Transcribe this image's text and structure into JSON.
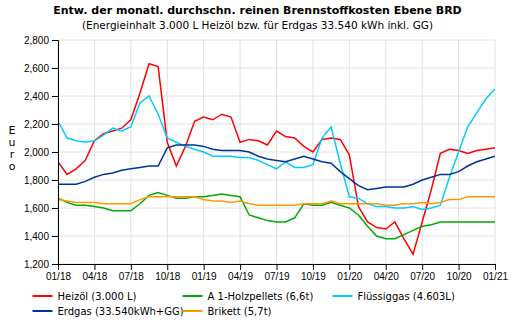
{
  "chart_data": {
    "type": "line",
    "title": "Entw. der monatl. durchschn. reinen Brennstoffkosten Ebene BRD",
    "subtitle": "(Energieinhalt 3.000 L Heizöl bzw. für Erdgas 33.540 kWh inkl. GG)",
    "y_label": "Euro",
    "categories": [
      "01/18",
      null,
      null,
      null,
      "04/18",
      null,
      null,
      null,
      "07/18",
      null,
      null,
      null,
      "10/18",
      null,
      null,
      null,
      "01/19",
      null,
      null,
      null,
      "04/19",
      null,
      null,
      null,
      "07/19",
      null,
      null,
      null,
      "10/19",
      null,
      null,
      null,
      "01/20",
      null,
      null,
      null,
      "04/20",
      null,
      null,
      null,
      "07/20",
      null,
      null,
      null,
      "10/20",
      null,
      null,
      null,
      "01/21"
    ],
    "ylim": [
      1.2,
      2.8
    ],
    "yticks": [
      {
        "value": 1.2,
        "label": "1,200"
      },
      {
        "value": 1.4,
        "label": "1,400"
      },
      {
        "value": 1.6,
        "label": "1,600"
      },
      {
        "value": 1.8,
        "label": "1,800"
      },
      {
        "value": 2.0,
        "label": "2,000"
      },
      {
        "value": 2.2,
        "label": "2,200"
      },
      {
        "value": 2.4,
        "label": "2,400"
      },
      {
        "value": 2.6,
        "label": "2,600"
      },
      {
        "value": 2.8,
        "label": "2,800"
      }
    ],
    "grid": true,
    "legend": "bottom",
    "series": [
      {
        "name": "Heizöl (3.000 L)",
        "color": "#FF0000",
        "values": [
          1.93,
          1.84,
          1.88,
          1.94,
          2.08,
          2.13,
          2.15,
          2.17,
          2.23,
          2.42,
          2.63,
          2.61,
          2.07,
          1.9,
          2.04,
          2.22,
          2.25,
          2.23,
          2.27,
          2.25,
          2.07,
          2.09,
          2.08,
          2.05,
          2.15,
          2.11,
          2.1,
          2.04,
          2.0,
          2.09,
          2.1,
          2.09,
          1.98,
          1.61,
          1.5,
          1.46,
          1.45,
          1.5,
          1.38,
          1.27,
          1.5,
          1.73,
          1.99,
          2.02,
          2.01,
          1.99,
          2.01,
          2.02,
          2.03
        ]
      },
      {
        "name": "A 1-Holzpellets (6,6t)",
        "color": "#00AA00",
        "values": [
          1.67,
          1.64,
          1.62,
          1.62,
          1.61,
          1.6,
          1.58,
          1.58,
          1.58,
          1.63,
          1.69,
          1.71,
          1.69,
          1.67,
          1.67,
          1.68,
          1.68,
          1.69,
          1.7,
          1.69,
          1.68,
          1.55,
          1.53,
          1.51,
          1.5,
          1.5,
          1.53,
          1.63,
          1.62,
          1.62,
          1.64,
          1.62,
          1.6,
          1.55,
          1.47,
          1.4,
          1.38,
          1.38,
          1.41,
          1.44,
          1.47,
          1.48,
          1.5,
          1.5,
          1.5,
          1.5,
          1.5,
          1.5,
          1.5
        ]
      },
      {
        "name": "Flüssiggas (4.603L)",
        "color": "#00CCFF",
        "values": [
          2.22,
          2.1,
          2.08,
          2.07,
          2.08,
          2.12,
          2.17,
          2.15,
          2.18,
          2.35,
          2.4,
          2.27,
          2.1,
          2.07,
          2.04,
          2.02,
          2.0,
          1.97,
          1.97,
          1.97,
          1.96,
          1.96,
          1.94,
          1.91,
          1.88,
          1.93,
          1.89,
          1.89,
          1.91,
          2.1,
          2.18,
          1.92,
          1.68,
          1.67,
          1.63,
          1.61,
          1.61,
          1.6,
          1.6,
          1.61,
          1.59,
          1.6,
          1.62,
          1.82,
          2.0,
          2.18,
          2.28,
          2.38,
          2.45
        ]
      },
      {
        "name": "Erdgas (33.540kWh+GG)",
        "color": "#003399",
        "values": [
          1.77,
          1.77,
          1.77,
          1.79,
          1.82,
          1.84,
          1.85,
          1.87,
          1.88,
          1.89,
          1.9,
          1.9,
          2.03,
          2.05,
          2.05,
          2.05,
          2.04,
          2.02,
          2.01,
          2.01,
          2.01,
          2.0,
          1.97,
          1.95,
          1.94,
          1.93,
          1.95,
          1.97,
          1.95,
          1.93,
          1.92,
          1.86,
          1.81,
          1.76,
          1.73,
          1.74,
          1.75,
          1.75,
          1.75,
          1.77,
          1.8,
          1.82,
          1.84,
          1.84,
          1.86,
          1.9,
          1.93,
          1.95,
          1.97
        ]
      },
      {
        "name": "Brikett (5,7t)",
        "color": "#FF9900",
        "values": [
          1.66,
          1.65,
          1.64,
          1.64,
          1.64,
          1.63,
          1.63,
          1.63,
          1.63,
          1.66,
          1.68,
          1.68,
          1.68,
          1.68,
          1.68,
          1.68,
          1.66,
          1.65,
          1.65,
          1.64,
          1.65,
          1.63,
          1.62,
          1.62,
          1.62,
          1.62,
          1.62,
          1.63,
          1.63,
          1.63,
          1.65,
          1.63,
          1.63,
          1.63,
          1.63,
          1.63,
          1.62,
          1.62,
          1.63,
          1.63,
          1.64,
          1.63,
          1.64,
          1.66,
          1.66,
          1.68,
          1.68,
          1.68,
          1.68
        ]
      }
    ]
  }
}
